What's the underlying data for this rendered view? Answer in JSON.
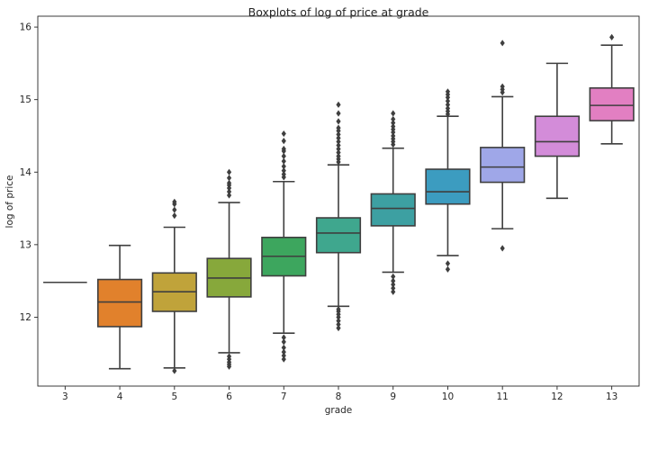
{
  "chart_data": {
    "type": "box",
    "title": "Boxplots of log of price at grade",
    "xlabel": "grade",
    "ylabel": "log of price",
    "ylim": [
      11.05,
      16.15
    ],
    "yticks": [
      12,
      13,
      14,
      15,
      16
    ],
    "grid": false,
    "legend": "none",
    "categories": [
      "3",
      "4",
      "5",
      "6",
      "7",
      "8",
      "9",
      "10",
      "11",
      "12",
      "13"
    ],
    "colors": [
      "#3274a1",
      "#e1812c",
      "#c0a33a",
      "#87a83b",
      "#3da65e",
      "#3fa78e",
      "#3da0a2",
      "#3c9cc0",
      "#9fa7e8",
      "#d38cd9",
      "#e27fc2"
    ],
    "boxes": [
      {
        "q1": 12.48,
        "median": 12.48,
        "q3": 12.48,
        "whislo": 12.48,
        "whishi": 12.48,
        "fliers": []
      },
      {
        "q1": 11.87,
        "median": 12.21,
        "q3": 12.52,
        "whislo": 11.29,
        "whishi": 12.99,
        "fliers": []
      },
      {
        "q1": 12.08,
        "median": 12.35,
        "q3": 12.61,
        "whislo": 11.3,
        "whishi": 13.24,
        "fliers": [
          11.26,
          13.4,
          13.48,
          13.56,
          13.59
        ]
      },
      {
        "q1": 12.28,
        "median": 12.54,
        "q3": 12.81,
        "whislo": 11.51,
        "whishi": 13.58,
        "fliers": [
          11.32,
          11.35,
          11.38,
          11.42,
          11.46,
          13.68,
          13.73,
          13.78,
          13.82,
          13.85,
          13.92,
          14.0
        ]
      },
      {
        "q1": 12.57,
        "median": 12.84,
        "q3": 13.1,
        "whislo": 11.78,
        "whishi": 13.87,
        "fliers": [
          11.42,
          11.47,
          11.52,
          11.58,
          11.66,
          11.72,
          13.93,
          13.97,
          14.02,
          14.08,
          14.15,
          14.22,
          14.29,
          14.32,
          14.43,
          14.53
        ]
      },
      {
        "q1": 12.89,
        "median": 13.16,
        "q3": 13.37,
        "whislo": 12.15,
        "whishi": 14.1,
        "fliers": [
          11.85,
          11.9,
          11.95,
          12.0,
          12.04,
          12.08,
          12.11,
          14.14,
          14.18,
          14.22,
          14.27,
          14.32,
          14.37,
          14.42,
          14.47,
          14.52,
          14.57,
          14.61,
          14.7,
          14.81,
          14.93
        ]
      },
      {
        "q1": 13.26,
        "median": 13.5,
        "q3": 13.7,
        "whislo": 12.62,
        "whishi": 14.33,
        "fliers": [
          12.35,
          12.4,
          12.45,
          12.5,
          12.56,
          14.38,
          14.42,
          14.46,
          14.5,
          14.55,
          14.59,
          14.63,
          14.68,
          14.73,
          14.81
        ]
      },
      {
        "q1": 13.56,
        "median": 13.73,
        "q3": 14.04,
        "whislo": 12.85,
        "whishi": 14.77,
        "fliers": [
          12.66,
          12.74,
          14.8,
          14.84,
          14.88,
          14.93,
          14.98,
          15.03,
          15.07,
          15.11
        ]
      },
      {
        "q1": 13.86,
        "median": 14.07,
        "q3": 14.34,
        "whislo": 13.22,
        "whishi": 15.04,
        "fliers": [
          12.95,
          15.1,
          15.14,
          15.18,
          15.78
        ]
      },
      {
        "q1": 14.22,
        "median": 14.42,
        "q3": 14.77,
        "whislo": 13.64,
        "whishi": 15.5,
        "fliers": []
      },
      {
        "q1": 14.71,
        "median": 14.92,
        "q3": 15.16,
        "whislo": 14.39,
        "whishi": 15.75,
        "fliers": [
          15.86
        ]
      }
    ]
  }
}
